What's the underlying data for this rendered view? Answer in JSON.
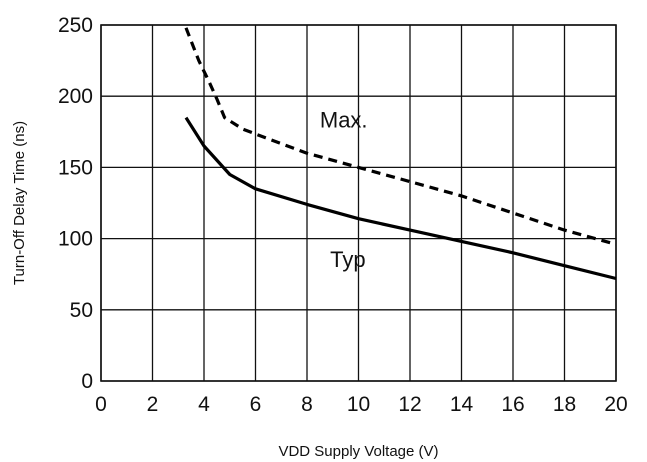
{
  "chart_data": {
    "type": "line",
    "title": "",
    "xlabel": "VDD Supply Voltage (V)",
    "ylabel": "Turn-Off Delay Time (ns)",
    "xlim": [
      0,
      20
    ],
    "ylim": [
      0,
      250
    ],
    "x_ticks": [
      "0",
      "2",
      "4",
      "6",
      "8",
      "10",
      "12",
      "14",
      "16",
      "18",
      "20"
    ],
    "y_ticks": [
      "0",
      "50",
      "100",
      "150",
      "200",
      "250"
    ],
    "grid": true,
    "legend": "none",
    "series": [
      {
        "name": "Max.",
        "style": "dashed",
        "x": [
          3.3,
          3.8,
          4.2,
          4.5,
          4.8,
          5.5,
          6.5,
          8,
          10,
          12,
          14,
          16,
          18,
          20
        ],
        "y": [
          248,
          225,
          210,
          198,
          185,
          177,
          170,
          160,
          150,
          140,
          130,
          118,
          106,
          96
        ]
      },
      {
        "name": "Typ",
        "style": "solid",
        "x": [
          3.3,
          4,
          5,
          6,
          8,
          10,
          12,
          14,
          16,
          18,
          20
        ],
        "y": [
          185,
          165,
          145,
          135,
          124,
          114,
          106,
          98,
          90,
          81,
          72
        ]
      }
    ],
    "annotations": [
      {
        "text": "Max.",
        "x": 8.5,
        "y": 178
      },
      {
        "text": "Typ",
        "x": 8.9,
        "y": 80
      }
    ]
  }
}
